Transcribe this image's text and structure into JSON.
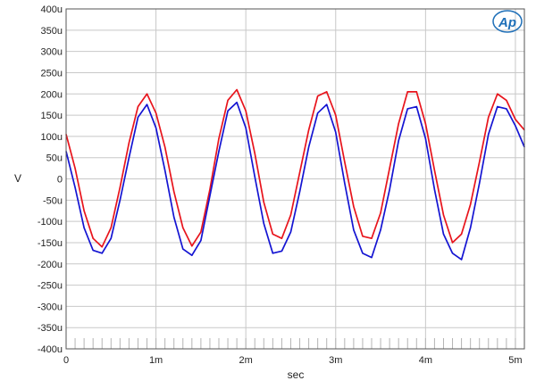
{
  "chart_data": {
    "type": "line",
    "title": "",
    "xlabel": "sec",
    "ylabel": "V",
    "xlim": [
      0,
      0.0051
    ],
    "ylim": [
      -0.0004,
      0.0004
    ],
    "grid": true,
    "x_ticks": [
      {
        "value": 0,
        "label": "0"
      },
      {
        "value": 0.001,
        "label": "1m"
      },
      {
        "value": 0.002,
        "label": "2m"
      },
      {
        "value": 0.003,
        "label": "3m"
      },
      {
        "value": 0.004,
        "label": "4m"
      },
      {
        "value": 0.005,
        "label": "5m"
      }
    ],
    "y_ticks": [
      {
        "value": 0.0004,
        "label": "400u"
      },
      {
        "value": 0.00035,
        "label": "350u"
      },
      {
        "value": 0.0003,
        "label": "300u"
      },
      {
        "value": 0.00025,
        "label": "250u"
      },
      {
        "value": 0.0002,
        "label": "200u"
      },
      {
        "value": 0.00015,
        "label": "150u"
      },
      {
        "value": 0.0001,
        "label": "100u"
      },
      {
        "value": 5e-05,
        "label": "50u"
      },
      {
        "value": 0,
        "label": "0"
      },
      {
        "value": -5e-05,
        "label": "-50u"
      },
      {
        "value": -0.0001,
        "label": "-100u"
      },
      {
        "value": -0.00015,
        "label": "-150u"
      },
      {
        "value": -0.0002,
        "label": "-200u"
      },
      {
        "value": -0.00025,
        "label": "-250u"
      },
      {
        "value": -0.0003,
        "label": "-300u"
      },
      {
        "value": -0.00035,
        "label": "-350u"
      },
      {
        "value": -0.0004,
        "label": "-400u"
      }
    ],
    "series": [
      {
        "color": "#e8141c",
        "x": [
          0,
          0.0001,
          0.0002,
          0.0003,
          0.0004,
          0.0005,
          0.0006,
          0.0007,
          0.0008,
          0.0009,
          0.001,
          0.0011,
          0.0012,
          0.0013,
          0.0014,
          0.0015,
          0.0016,
          0.0017,
          0.0018,
          0.0019,
          0.002,
          0.0021,
          0.0022,
          0.0023,
          0.0024,
          0.0025,
          0.0026,
          0.0027,
          0.0028,
          0.0029,
          0.003,
          0.0031,
          0.0032,
          0.0033,
          0.0034,
          0.0035,
          0.0036,
          0.0037,
          0.0038,
          0.0039,
          0.004,
          0.0041,
          0.0042,
          0.0043,
          0.0044,
          0.0045,
          0.0046,
          0.0047,
          0.0048,
          0.0049,
          0.005,
          0.0051
        ],
        "y": [
          0.000105,
          2.5e-05,
          -7.5e-05,
          -0.00014,
          -0.00016,
          -0.000115,
          -2e-05,
          8.5e-05,
          0.00017,
          0.0002,
          0.000155,
          7.5e-05,
          -3e-05,
          -0.000115,
          -0.000158,
          -0.000125,
          -2.5e-05,
          9.5e-05,
          0.000185,
          0.00021,
          0.00016,
          6e-05,
          -5.5e-05,
          -0.00013,
          -0.00014,
          -8.5e-05,
          1.5e-05,
          0.000115,
          0.000195,
          0.000205,
          0.00015,
          4e-05,
          -6.5e-05,
          -0.000135,
          -0.00014,
          -8e-05,
          2.5e-05,
          0.00013,
          0.000205,
          0.000205,
          0.00013,
          2e-05,
          -8.5e-05,
          -0.00015,
          -0.00013,
          -6e-05,
          4e-05,
          0.000145,
          0.0002,
          0.000185,
          0.00014,
          0.000115
        ]
      },
      {
        "color": "#1414d2",
        "x": [
          0,
          0.0001,
          0.0002,
          0.0003,
          0.0004,
          0.0005,
          0.0006,
          0.0007,
          0.0008,
          0.0009,
          0.001,
          0.0011,
          0.0012,
          0.0013,
          0.0014,
          0.0015,
          0.0016,
          0.0017,
          0.0018,
          0.0019,
          0.002,
          0.0021,
          0.0022,
          0.0023,
          0.0024,
          0.0025,
          0.0026,
          0.0027,
          0.0028,
          0.0029,
          0.003,
          0.0031,
          0.0032,
          0.0033,
          0.0034,
          0.0035,
          0.0036,
          0.0037,
          0.0038,
          0.0039,
          0.004,
          0.0041,
          0.0042,
          0.0043,
          0.0044,
          0.0045,
          0.0046,
          0.0047,
          0.0048,
          0.0049,
          0.005,
          0.0051
        ],
        "y": [
          6.5e-05,
          -2e-05,
          -0.000115,
          -0.000168,
          -0.000175,
          -0.00014,
          -5e-05,
          5e-05,
          0.000145,
          0.000175,
          0.00012,
          2e-05,
          -9e-05,
          -0.000165,
          -0.00018,
          -0.000145,
          -4e-05,
          6.5e-05,
          0.00016,
          0.00018,
          0.00012,
          5e-06,
          -0.000105,
          -0.000175,
          -0.00017,
          -0.000125,
          -3e-05,
          7.5e-05,
          0.000155,
          0.000175,
          0.00011,
          -1e-05,
          -0.00012,
          -0.000175,
          -0.000185,
          -0.00012,
          -2.5e-05,
          9e-05,
          0.000165,
          0.00017,
          9.5e-05,
          -2.5e-05,
          -0.00013,
          -0.000175,
          -0.00019,
          -0.000115,
          -1e-05,
          0.000105,
          0.00017,
          0.000165,
          0.000125,
          7.5e-05
        ]
      }
    ]
  },
  "logo": {
    "text": "Ap",
    "color": "#1e6fb8"
  }
}
